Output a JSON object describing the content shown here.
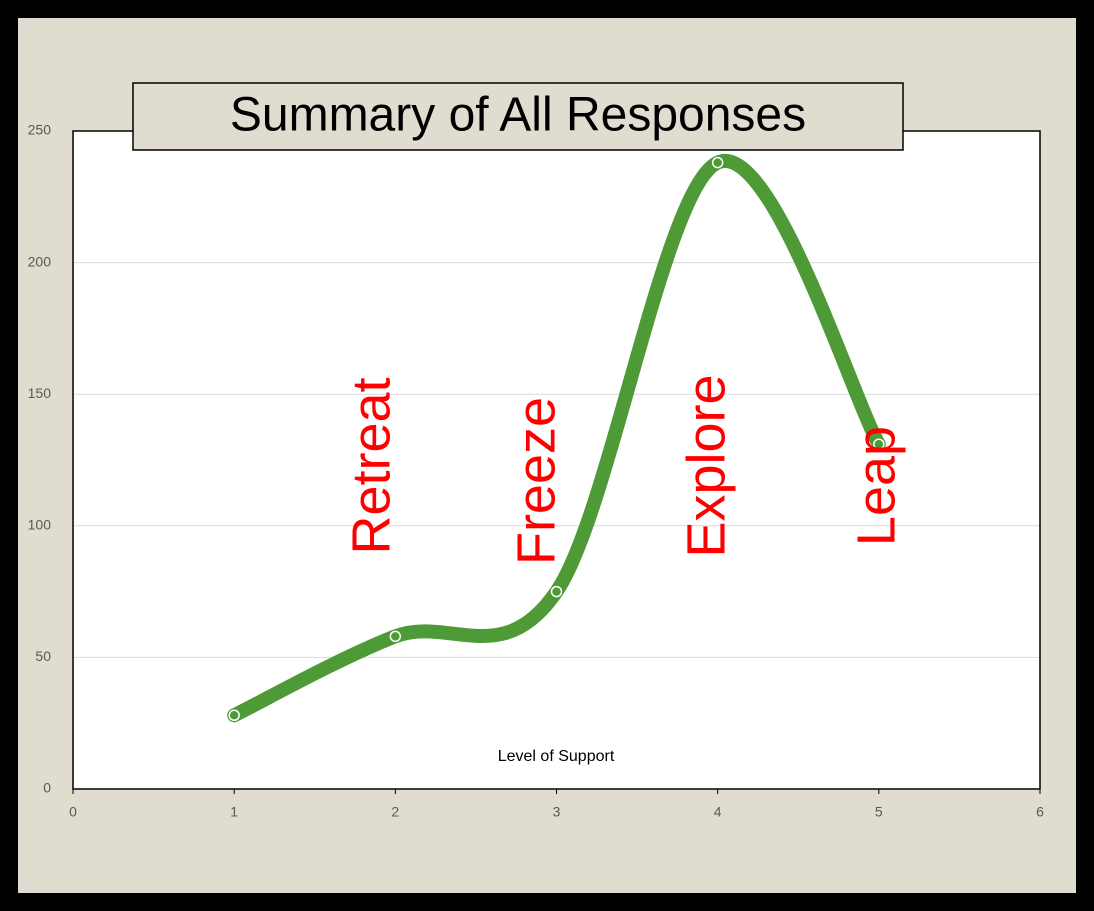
{
  "chart_data": {
    "type": "scatter",
    "title": "Summary of All Responses",
    "x_label": "Level of Support",
    "x": [
      1,
      2,
      3,
      4,
      5
    ],
    "series": [
      {
        "color": "#4e9a36",
        "values": [
          28,
          58,
          75,
          238,
          131
        ]
      }
    ],
    "smooth": true,
    "xlim": [
      0,
      6
    ],
    "xticks": [
      0,
      1,
      2,
      3,
      4,
      5,
      6
    ],
    "ylim": [
      0,
      250
    ],
    "yticks": [
      0,
      50,
      100,
      150,
      200,
      250
    ],
    "grid": true,
    "annotations": [
      "Retreat",
      "Freeze",
      "Explore",
      "Leap"
    ],
    "annotation_color": "#ff0000"
  }
}
